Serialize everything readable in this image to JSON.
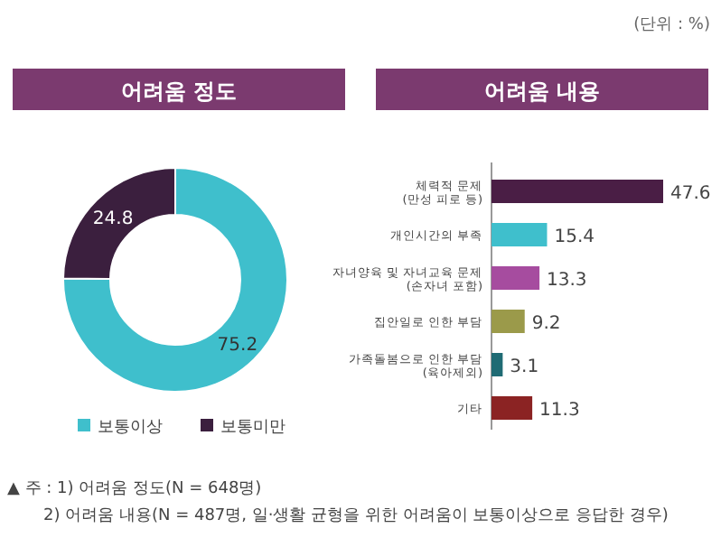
{
  "chart_data": [
    {
      "type": "donut",
      "title": "어려움 정도",
      "categories": [
        "보통이상",
        "보통미만"
      ],
      "values": [
        75.2,
        24.8
      ],
      "colors": [
        "#3fbfcc",
        "#3b1f3e"
      ],
      "data_labels": true,
      "legend": "bottom",
      "annotations": [
        "▲ 주 : 1) 어려움 정도(N = 648명)",
        "2) 어려움 내용(N = 487명, 일·생활 균형을 위한 어려움이 보통이상으로 응답한 경우)"
      ]
    },
    {
      "type": "bar",
      "orientation": "horizontal",
      "title": "어려움 내용",
      "categories": [
        "체력적 문제 (만성 피로 등)",
        "개인시간의 부족",
        "자녀양육 및 자녀교육 문제 (손자녀 포함)",
        "집안일로 인한 부담",
        "가족돌봄으로 인한 부담 (육아제외)",
        "기타"
      ],
      "values": [
        47.6,
        15.4,
        13.3,
        9.2,
        3.1,
        11.3
      ],
      "colors": [
        "#4a1e45",
        "#3fbfcc",
        "#a64c9f",
        "#9b9a4a",
        "#1f6b74",
        "#8b2323"
      ],
      "data_labels": true,
      "annotations": [
        "(단위 : %)"
      ]
    }
  ]
}
